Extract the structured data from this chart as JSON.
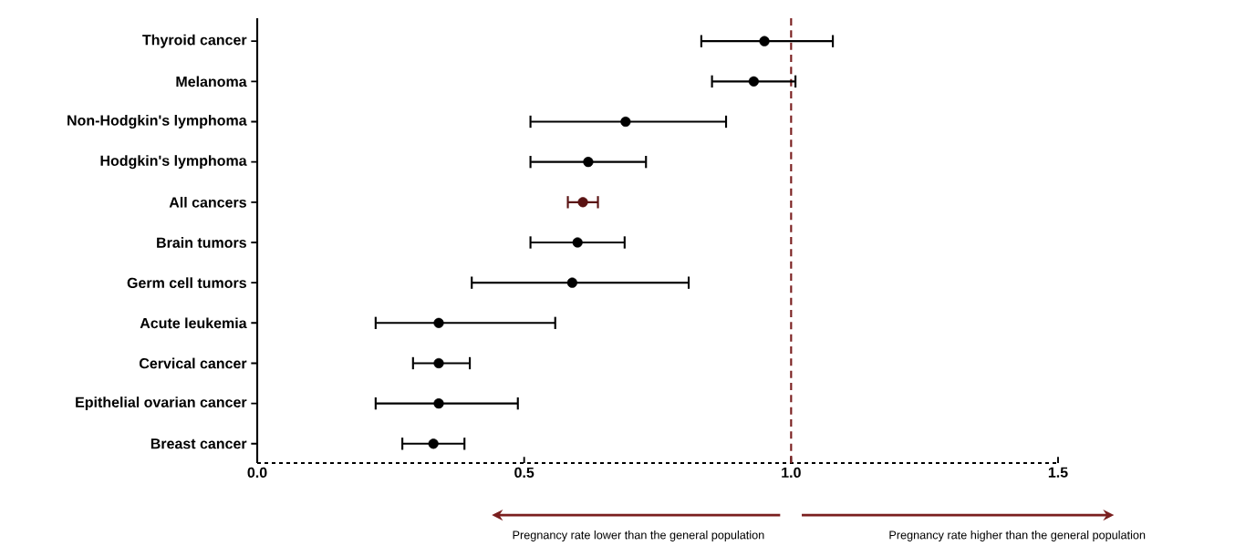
{
  "chart_data": {
    "type": "scatter",
    "orientation": "horizontal",
    "marker": "circle",
    "grid": false,
    "categories": [
      "Thyroid cancer",
      "Melanoma",
      "Non-Hodgkin's lymphoma",
      "Hodgkin's lymphoma",
      "All cancers",
      "Brain tumors",
      "Germ cell tumors",
      "Acute leukemia",
      "Cervical cancer",
      "Epithelial ovarian cancer",
      "Breast cancer"
    ],
    "values": [
      0.95,
      0.93,
      0.69,
      0.62,
      0.61,
      0.6,
      0.59,
      0.34,
      0.34,
      0.34,
      0.33
    ],
    "errors": [
      [
        0.83,
        1.08
      ],
      [
        0.85,
        1.01
      ],
      [
        0.51,
        0.88
      ],
      [
        0.51,
        0.73
      ],
      [
        0.58,
        0.64
      ],
      [
        0.51,
        0.69
      ],
      [
        0.4,
        0.81
      ],
      [
        0.22,
        0.56
      ],
      [
        0.29,
        0.4
      ],
      [
        0.22,
        0.49
      ],
      [
        0.27,
        0.39
      ]
    ],
    "colors": [
      "#000000",
      "#000000",
      "#000000",
      "#000000",
      "#5a1212",
      "#000000",
      "#000000",
      "#000000",
      "#000000",
      "#000000",
      "#000000"
    ],
    "xlim": [
      0,
      1.5
    ],
    "xticks": [
      {
        "value": 0,
        "label": "0.0"
      },
      0.5,
      {
        "value": 1,
        "label": "1.0"
      },
      1.5
    ],
    "ref_lines": [
      {
        "axis": "x",
        "value": 1,
        "color": "#7a1f1f",
        "line_style": "dashed"
      }
    ],
    "annotations": [
      "Pregnancy rate lower than the general population",
      "Pregnancy rate higher than the general population"
    ]
  }
}
